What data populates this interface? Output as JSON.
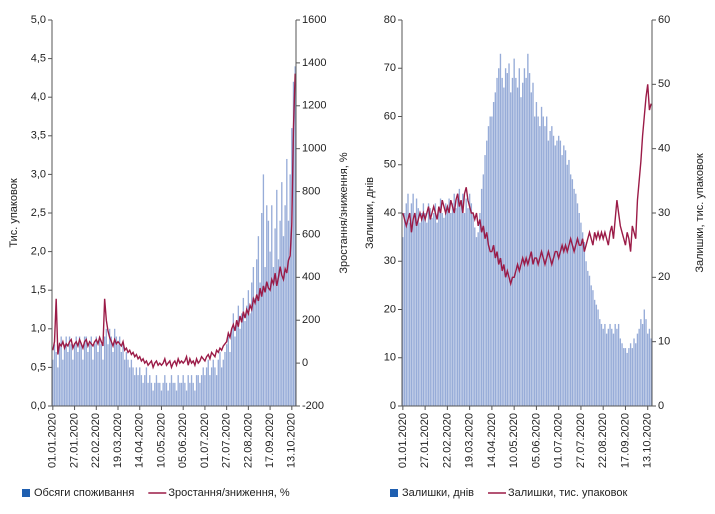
{
  "chart_data": [
    {
      "type": "bar-line",
      "categories": [
        "01.01.2020",
        null,
        null,
        null,
        null,
        null,
        null,
        null,
        null,
        null,
        null,
        null,
        null,
        "27.01.2020",
        null,
        null,
        null,
        null,
        null,
        null,
        null,
        null,
        null,
        null,
        null,
        null,
        "22.02.2020",
        null,
        null,
        null,
        null,
        null,
        null,
        null,
        null,
        null,
        null,
        null,
        null,
        "19.03.2020",
        null,
        null,
        null,
        null,
        null,
        null,
        null,
        null,
        null,
        null,
        null,
        null,
        "14.04.2020",
        null,
        null,
        null,
        null,
        null,
        null,
        null,
        null,
        null,
        null,
        null,
        null,
        "10.05.2020",
        null,
        null,
        null,
        null,
        null,
        null,
        null,
        null,
        null,
        null,
        null,
        null,
        "05.06.2020",
        null,
        null,
        null,
        null,
        null,
        null,
        null,
        null,
        null,
        null,
        null,
        null,
        "01.07.2020",
        null,
        null,
        null,
        null,
        null,
        null,
        null,
        null,
        null,
        null,
        null,
        null,
        "27.07.2020",
        null,
        null,
        null,
        null,
        null,
        null,
        null,
        null,
        null,
        null,
        null,
        null,
        "22.08.2020",
        null,
        null,
        null,
        null,
        null,
        null,
        null,
        null,
        null,
        null,
        null,
        null,
        "17.09.2020",
        null,
        null,
        null,
        null,
        null,
        null,
        null,
        null,
        null,
        null,
        null,
        null,
        "13.10.2020",
        null,
        null
      ],
      "ylabel": "Тис. упаковок",
      "y2label": "Зростання/зниження, %",
      "ylim": [
        0,
        5
      ],
      "yticks": [
        {
          "value": 0,
          "label": "0,0"
        },
        {
          "value": 0.5,
          "label": "0,5"
        },
        {
          "value": 1,
          "label": "1,0"
        },
        {
          "value": 1.5,
          "label": "1,5"
        },
        {
          "value": 2,
          "label": "2,0"
        },
        {
          "value": 2.5,
          "label": "2,5"
        },
        {
          "value": 3,
          "label": "3,0"
        },
        {
          "value": 3.5,
          "label": "3,5"
        },
        {
          "value": 4,
          "label": "4,0"
        },
        {
          "value": 4.5,
          "label": "4,5"
        },
        {
          "value": 5,
          "label": "5,0"
        }
      ],
      "y2lim": [
        -200,
        1600
      ],
      "y2ticks": [
        -200,
        0,
        200,
        400,
        600,
        800,
        1000,
        1200,
        1400,
        1600
      ],
      "series": [
        {
          "name": "Обсяги споживання",
          "kind": "bar",
          "color": "#97acd8",
          "legend_color": "#1f5fb0",
          "values": [
            0.6,
            0.8,
            0.7,
            0.5,
            0.8,
            0.9,
            0.6,
            0.8,
            0.9,
            0.7,
            0.9,
            0.8,
            0.6,
            0.8,
            0.9,
            0.7,
            0.9,
            0.8,
            0.6,
            0.9,
            0.9,
            0.7,
            0.8,
            0.9,
            0.6,
            0.8,
            0.9,
            0.7,
            0.9,
            0.8,
            0.6,
            0.9,
            1.0,
            0.8,
            1.0,
            0.9,
            0.7,
            1.0,
            0.9,
            0.8,
            0.9,
            0.7,
            0.8,
            0.6,
            0.7,
            0.6,
            0.5,
            0.6,
            0.5,
            0.4,
            0.5,
            0.4,
            0.5,
            0.4,
            0.3,
            0.4,
            0.5,
            0.3,
            0.4,
            0.3,
            0.2,
            0.3,
            0.4,
            0.3,
            0.3,
            0.2,
            0.3,
            0.4,
            0.3,
            0.2,
            0.3,
            0.4,
            0.3,
            0.3,
            0.2,
            0.4,
            0.3,
            0.3,
            0.4,
            0.3,
            0.2,
            0.4,
            0.3,
            0.4,
            0.3,
            0.2,
            0.4,
            0.4,
            0.3,
            0.4,
            0.5,
            0.4,
            0.5,
            0.6,
            0.4,
            0.5,
            0.6,
            0.5,
            0.4,
            0.6,
            0.7,
            0.5,
            0.6,
            0.7,
            0.8,
            0.9,
            0.7,
            1.0,
            1.2,
            0.9,
            1.1,
            1.3,
            1.0,
            1.2,
            1.4,
            1.1,
            1.3,
            1.5,
            1.2,
            1.6,
            1.8,
            1.4,
            1.9,
            2.2,
            1.6,
            2.5,
            3.0,
            1.8,
            2.6,
            2.4,
            2.0,
            2.6,
            1.8,
            2.3,
            2.8,
            1.9,
            2.4,
            2.9,
            2.2,
            2.6,
            3.2,
            2.4,
            3.0,
            3.6,
            4.2,
            4.4
          ]
        },
        {
          "name": "Зростання/зниження, %",
          "kind": "line",
          "axis": "y2",
          "color": "#9b1b47",
          "values": [
            60,
            100,
            300,
            40,
            90,
            80,
            100,
            70,
            90,
            80,
            100,
            110,
            70,
            90,
            100,
            80,
            110,
            90,
            70,
            100,
            110,
            80,
            100,
            90,
            80,
            100,
            110,
            90,
            120,
            100,
            80,
            300,
            200,
            150,
            120,
            100,
            80,
            110,
            90,
            100,
            90,
            80,
            100,
            60,
            70,
            50,
            60,
            40,
            50,
            30,
            40,
            20,
            30,
            10,
            20,
            0,
            10,
            -10,
            0,
            10,
            -20,
            0,
            10,
            -10,
            0,
            -10,
            0,
            20,
            -10,
            0,
            10,
            -20,
            0,
            10,
            -10,
            20,
            0,
            10,
            0,
            10,
            30,
            -10,
            20,
            0,
            10,
            -10,
            20,
            0,
            10,
            30,
            20,
            10,
            30,
            40,
            20,
            50,
            40,
            30,
            60,
            50,
            70,
            60,
            80,
            90,
            100,
            140,
            120,
            160,
            180,
            150,
            200,
            170,
            220,
            190,
            240,
            210,
            250,
            230,
            270,
            250,
            300,
            280,
            320,
            290,
            350,
            310,
            360,
            330,
            380,
            350,
            340,
            390,
            370,
            420,
            360,
            400,
            450,
            410,
            390,
            440,
            420,
            480,
            500,
            650,
            1100,
            1350
          ]
        }
      ]
    },
    {
      "type": "bar-line",
      "categories": [
        "01.01.2020",
        null,
        null,
        null,
        null,
        null,
        null,
        null,
        null,
        null,
        null,
        null,
        null,
        "27.01.2020",
        null,
        null,
        null,
        null,
        null,
        null,
        null,
        null,
        null,
        null,
        null,
        null,
        "22.02.2020",
        null,
        null,
        null,
        null,
        null,
        null,
        null,
        null,
        null,
        null,
        null,
        null,
        "19.03.2020",
        null,
        null,
        null,
        null,
        null,
        null,
        null,
        null,
        null,
        null,
        null,
        null,
        "14.04.2020",
        null,
        null,
        null,
        null,
        null,
        null,
        null,
        null,
        null,
        null,
        null,
        null,
        "10.05.2020",
        null,
        null,
        null,
        null,
        null,
        null,
        null,
        null,
        null,
        null,
        null,
        null,
        "05.06.2020",
        null,
        null,
        null,
        null,
        null,
        null,
        null,
        null,
        null,
        null,
        null,
        null,
        "01.07.2020",
        null,
        null,
        null,
        null,
        null,
        null,
        null,
        null,
        null,
        null,
        null,
        null,
        "27.07.2020",
        null,
        null,
        null,
        null,
        null,
        null,
        null,
        null,
        null,
        null,
        null,
        null,
        "22.08.2020",
        null,
        null,
        null,
        null,
        null,
        null,
        null,
        null,
        null,
        null,
        null,
        null,
        "17.09.2020",
        null,
        null,
        null,
        null,
        null,
        null,
        null,
        null,
        null,
        null,
        null,
        null,
        "13.10.2020",
        null,
        null
      ],
      "ylabel": "Залишки, днів",
      "y2label": "Залишки, тис. упаковок",
      "ylim": [
        0,
        80
      ],
      "yticks": [
        0,
        10,
        20,
        30,
        40,
        50,
        60,
        70,
        80
      ],
      "y2lim": [
        0,
        60
      ],
      "y2ticks": [
        0,
        10,
        20,
        30,
        40,
        50,
        60
      ],
      "series": [
        {
          "name": "Залишки, днів",
          "kind": "bar",
          "color": "#97acd8",
          "legend_color": "#1f5fb0",
          "values": [
            35,
            40,
            42,
            44,
            38,
            42,
            44,
            40,
            43,
            41,
            38,
            40,
            42,
            40,
            38,
            42,
            41,
            39,
            40,
            42,
            38,
            41,
            43,
            40,
            39,
            42,
            41,
            43,
            40,
            42,
            44,
            41,
            43,
            45,
            42,
            44,
            40,
            43,
            41,
            44,
            42,
            40,
            37,
            35,
            36,
            40,
            45,
            48,
            52,
            55,
            58,
            60,
            60,
            63,
            65,
            68,
            70,
            73,
            68,
            66,
            70,
            69,
            71,
            65,
            68,
            72,
            68,
            66,
            70,
            64,
            67,
            70,
            68,
            73,
            69,
            65,
            67,
            60,
            63,
            60,
            58,
            62,
            60,
            58,
            60,
            55,
            57,
            58,
            56,
            54,
            55,
            56,
            55,
            52,
            54,
            53,
            50,
            51,
            48,
            47,
            45,
            44,
            42,
            40,
            38,
            36,
            34,
            30,
            28,
            27,
            25,
            24,
            22,
            21,
            20,
            18,
            17,
            16,
            17,
            15,
            16,
            17,
            16,
            15,
            17,
            16,
            17,
            14,
            13,
            12,
            12,
            11,
            12,
            13,
            12,
            14,
            13,
            15,
            16,
            18,
            17,
            20,
            18,
            15,
            16,
            14
          ]
        },
        {
          "name": "Залишки, тис. упаковок",
          "kind": "line",
          "axis": "y2",
          "color": "#9b1b47",
          "values": [
            30,
            29,
            28,
            29,
            30,
            27,
            29,
            30,
            28,
            29,
            30,
            29,
            30,
            29,
            30,
            31,
            29,
            30,
            31,
            30,
            29,
            31,
            30,
            32,
            31,
            30,
            31,
            30,
            32,
            31,
            30,
            32,
            33,
            31,
            32,
            30,
            33,
            34,
            32,
            31,
            30,
            30,
            29,
            30,
            28,
            29,
            27,
            28,
            26,
            27,
            25,
            24,
            24,
            25,
            23,
            24,
            22,
            23,
            21,
            22,
            20,
            21,
            20,
            19,
            20,
            20,
            21,
            22,
            21,
            22,
            23,
            22,
            23,
            22,
            23,
            24,
            22,
            23,
            23,
            22,
            23,
            24,
            23,
            22,
            23,
            24,
            23,
            22,
            23,
            24,
            24,
            23,
            24,
            25,
            24,
            25,
            24,
            25,
            26,
            25,
            24,
            25,
            26,
            25,
            25,
            26,
            24,
            25,
            26,
            27,
            26,
            25,
            27,
            26,
            27,
            26,
            27,
            26,
            27,
            26,
            25,
            27,
            28,
            26,
            29,
            32,
            30,
            28,
            27,
            26,
            25,
            27,
            26,
            24,
            28,
            27,
            26,
            32,
            35,
            38,
            42,
            45,
            48,
            50,
            46,
            47
          ]
        }
      ]
    }
  ]
}
